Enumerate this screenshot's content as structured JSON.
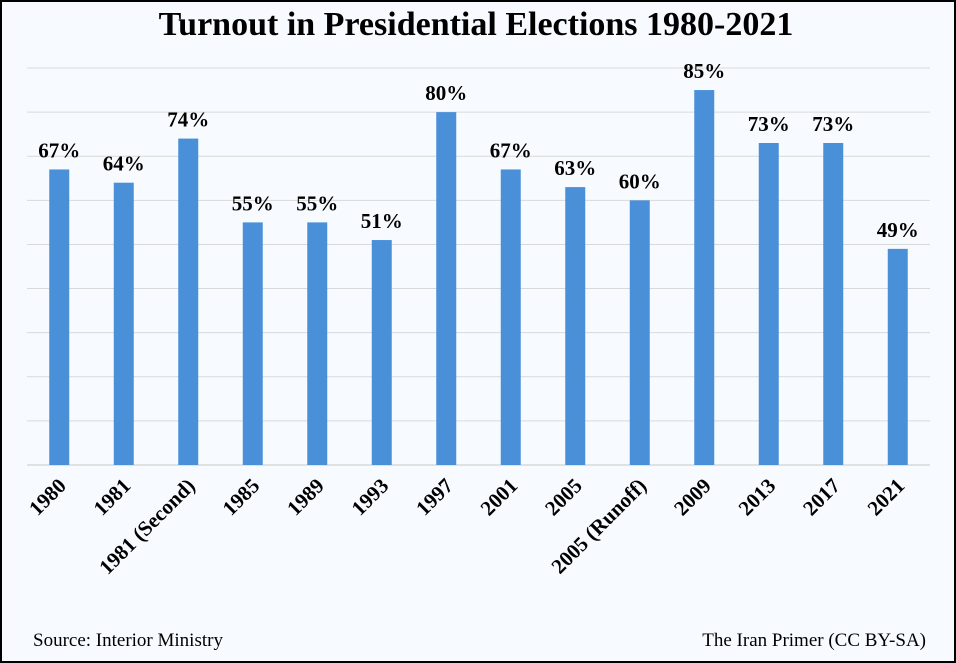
{
  "title": "Turnout in Presidential Elections 1980-2021",
  "source": "Source: Interior Ministry",
  "credit": "The Iran Primer (CC BY-SA)",
  "colors": {
    "bar": "#4a90d9",
    "grid": "#d9d9d9",
    "background": "#f7fbff",
    "border": "#000000"
  },
  "chart_data": {
    "type": "bar",
    "title": "Turnout in Presidential Elections 1980-2021",
    "xlabel": "",
    "ylabel": "",
    "ylim": [
      0,
      90
    ],
    "grid": true,
    "legend": "none",
    "categories": [
      "1980",
      "1981",
      "1981 (Second)",
      "1985",
      "1989",
      "1993",
      "1997",
      "2001",
      "2005",
      "2005 (Runoff)",
      "2009",
      "2013",
      "2017",
      "2021"
    ],
    "values": [
      67,
      64,
      74,
      55,
      55,
      51,
      80,
      67,
      63,
      60,
      85,
      73,
      73,
      49
    ],
    "data_labels": [
      "67%",
      "64%",
      "74%",
      "55%",
      "55%",
      "51%",
      "80%",
      "67%",
      "63%",
      "60%",
      "85%",
      "73%",
      "73%",
      "49%"
    ]
  }
}
